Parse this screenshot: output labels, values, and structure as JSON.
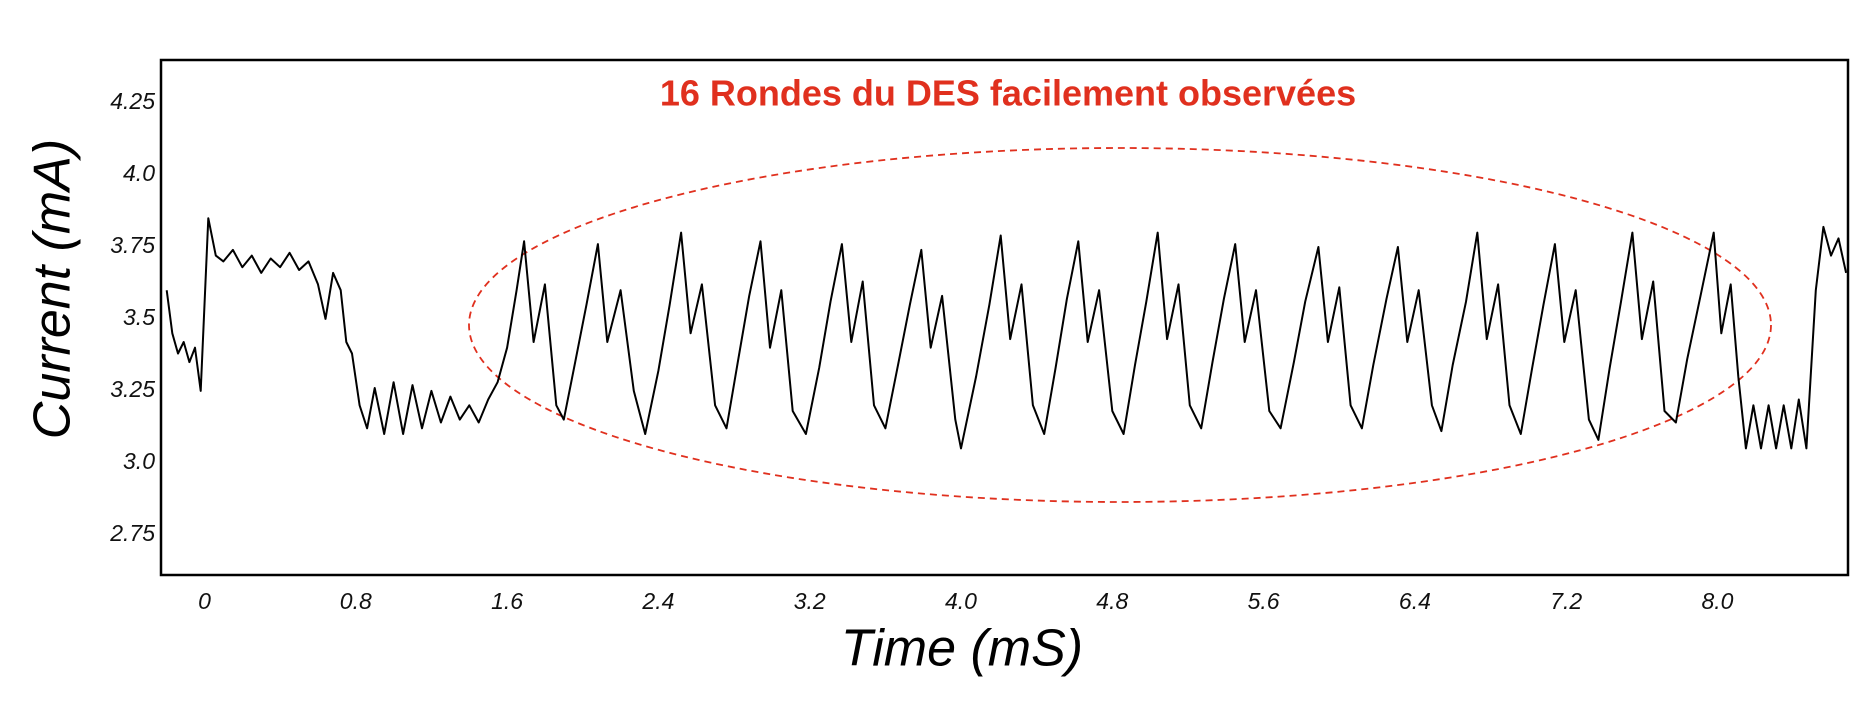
{
  "chart_data": {
    "type": "line",
    "annotation": "16 Rondes du DES facilement observées",
    "x_label": "Time (mS)",
    "y_label": "Current (mA)",
    "color": "#000000",
    "grid": false,
    "xlim": [
      -0.23,
      8.69
    ],
    "ylim": [
      2.61,
      4.4
    ],
    "xticks": [
      0,
      0.8,
      1.6,
      2.4,
      3.2,
      {
        "value": 4,
        "label": "4.0"
      },
      4.8,
      5.6,
      6.4,
      7.2,
      {
        "value": 8,
        "label": "8.0"
      }
    ],
    "yticks": [
      2.75,
      {
        "value": 3,
        "label": "3.0"
      },
      3.25,
      3.5,
      3.75,
      {
        "value": 4,
        "label": "4.0"
      },
      4.25
    ],
    "x": [
      -0.2,
      -0.17,
      -0.14,
      -0.11,
      -0.08,
      -0.05,
      -0.02,
      0.02,
      0.06,
      0.1,
      0.15,
      0.2,
      0.25,
      0.3,
      0.35,
      0.4,
      0.45,
      0.5,
      0.55,
      0.6,
      0.64,
      0.68,
      0.72,
      0.75,
      0.78,
      0.82,
      0.86,
      0.9,
      0.95,
      1.0,
      1.05,
      1.1,
      1.15,
      1.2,
      1.25,
      1.3,
      1.35,
      1.4,
      1.45,
      1.5,
      1.55,
      1.6,
      1.65,
      1.69,
      1.74,
      1.8,
      1.86,
      1.9,
      1.96,
      2.02,
      2.08,
      2.13,
      2.2,
      2.27,
      2.33,
      2.4,
      2.46,
      2.52,
      2.57,
      2.63,
      2.7,
      2.76,
      2.82,
      2.88,
      2.94,
      2.99,
      3.05,
      3.11,
      3.18,
      3.25,
      3.31,
      3.37,
      3.42,
      3.48,
      3.54,
      3.6,
      3.67,
      3.73,
      3.79,
      3.84,
      3.9,
      3.97,
      4.0,
      4.08,
      4.15,
      4.21,
      4.26,
      4.32,
      4.38,
      4.44,
      4.5,
      4.56,
      4.62,
      4.67,
      4.73,
      4.8,
      4.86,
      4.92,
      4.98,
      5.04,
      5.09,
      5.15,
      5.21,
      5.27,
      5.33,
      5.39,
      5.45,
      5.5,
      5.56,
      5.63,
      5.69,
      5.76,
      5.82,
      5.89,
      5.94,
      6.0,
      6.06,
      6.12,
      6.18,
      6.25,
      6.31,
      6.36,
      6.42,
      6.49,
      6.54,
      6.6,
      6.67,
      6.73,
      6.78,
      6.84,
      6.9,
      6.96,
      7.02,
      7.08,
      7.14,
      7.19,
      7.25,
      7.32,
      7.37,
      7.43,
      7.49,
      7.55,
      7.6,
      7.66,
      7.72,
      7.78,
      7.84,
      7.91,
      7.98,
      8.02,
      8.07,
      8.11,
      8.15,
      8.19,
      8.23,
      8.27,
      8.31,
      8.35,
      8.39,
      8.43,
      8.47,
      8.52,
      8.56,
      8.6,
      8.64,
      8.68
    ],
    "values": [
      3.6,
      3.45,
      3.38,
      3.42,
      3.35,
      3.4,
      3.25,
      3.85,
      3.72,
      3.7,
      3.74,
      3.68,
      3.72,
      3.66,
      3.71,
      3.68,
      3.73,
      3.67,
      3.7,
      3.62,
      3.5,
      3.66,
      3.6,
      3.42,
      3.38,
      3.2,
      3.12,
      3.26,
      3.1,
      3.28,
      3.1,
      3.27,
      3.12,
      3.25,
      3.14,
      3.23,
      3.15,
      3.2,
      3.14,
      3.22,
      3.28,
      3.4,
      3.6,
      3.77,
      3.42,
      3.62,
      3.2,
      3.15,
      3.35,
      3.55,
      3.76,
      3.42,
      3.6,
      3.25,
      3.1,
      3.32,
      3.55,
      3.8,
      3.45,
      3.62,
      3.2,
      3.12,
      3.35,
      3.58,
      3.77,
      3.4,
      3.6,
      3.18,
      3.1,
      3.33,
      3.56,
      3.76,
      3.42,
      3.63,
      3.2,
      3.12,
      3.35,
      3.55,
      3.74,
      3.4,
      3.58,
      3.15,
      3.05,
      3.3,
      3.55,
      3.79,
      3.43,
      3.62,
      3.2,
      3.1,
      3.33,
      3.57,
      3.77,
      3.42,
      3.6,
      3.18,
      3.1,
      3.34,
      3.56,
      3.8,
      3.43,
      3.62,
      3.2,
      3.12,
      3.35,
      3.57,
      3.76,
      3.42,
      3.6,
      3.18,
      3.12,
      3.35,
      3.56,
      3.75,
      3.42,
      3.61,
      3.2,
      3.12,
      3.34,
      3.57,
      3.75,
      3.42,
      3.6,
      3.2,
      3.11,
      3.34,
      3.56,
      3.8,
      3.43,
      3.62,
      3.2,
      3.1,
      3.33,
      3.55,
      3.76,
      3.42,
      3.6,
      3.15,
      3.08,
      3.33,
      3.56,
      3.8,
      3.43,
      3.63,
      3.18,
      3.14,
      3.36,
      3.58,
      3.8,
      3.45,
      3.62,
      3.3,
      3.05,
      3.2,
      3.05,
      3.2,
      3.05,
      3.2,
      3.05,
      3.22,
      3.05,
      3.6,
      3.82,
      3.72,
      3.78,
      3.66
    ]
  }
}
